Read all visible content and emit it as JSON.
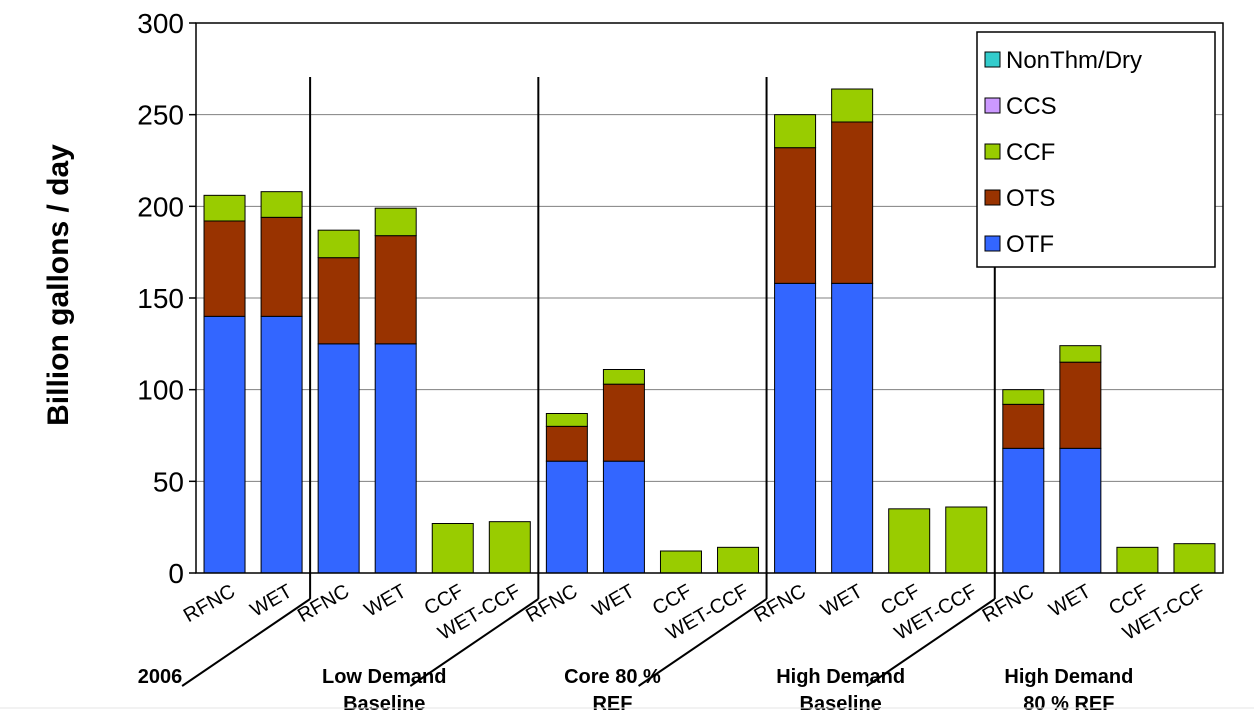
{
  "chart_data": {
    "type": "bar",
    "stacked": true,
    "ylabel": "Billion gallons / day",
    "ylim": [
      0,
      300
    ],
    "yticks": [
      "0",
      "50",
      "100",
      "150",
      "200",
      "250",
      "300"
    ],
    "grid": true,
    "legend_position": "top-right",
    "categories": [
      "RFNC",
      "WET",
      "RFNC",
      "WET",
      "CCF",
      "WET-CCF",
      "RFNC",
      "WET",
      "CCF",
      "WET-CCF",
      "RFNC",
      "WET",
      "CCF",
      "WET-CCF",
      "RFNC",
      "WET",
      "CCF",
      "WET-CCF"
    ],
    "groups": [
      {
        "label": [
          "2006"
        ],
        "start": 0,
        "count": 2
      },
      {
        "label": [
          "Low Demand",
          "Baseline"
        ],
        "start": 2,
        "count": 4
      },
      {
        "label": [
          "Core 80 %",
          "REF"
        ],
        "start": 6,
        "count": 4
      },
      {
        "label": [
          "High Demand",
          "Baseline"
        ],
        "start": 10,
        "count": 4
      },
      {
        "label": [
          "High Demand",
          "80 % REF"
        ],
        "start": 14,
        "count": 4
      }
    ],
    "series": [
      {
        "name": "OTF",
        "color": "#3366ff",
        "values": [
          140,
          140,
          125,
          125,
          0,
          0,
          61,
          61,
          0,
          0,
          158,
          158,
          0,
          0,
          68,
          68,
          0,
          0
        ]
      },
      {
        "name": "OTS",
        "color": "#993300",
        "values": [
          52,
          54,
          47,
          59,
          0,
          0,
          19,
          42,
          0,
          0,
          74,
          88,
          0,
          0,
          24,
          47,
          0,
          0
        ]
      },
      {
        "name": "CCF",
        "color": "#99cc00",
        "values": [
          14,
          14,
          15,
          15,
          27,
          28,
          7,
          8,
          12,
          14,
          18,
          18,
          35,
          36,
          8,
          9,
          14,
          16
        ]
      },
      {
        "name": "CCS",
        "color": "#cc99ff",
        "values": [
          0,
          0,
          0,
          0,
          0,
          0,
          0,
          0,
          0,
          0,
          0,
          0,
          0,
          0,
          0,
          0,
          0,
          0
        ]
      },
      {
        "name": "NonThm/Dry",
        "color": "#33cccc",
        "values": [
          0,
          0,
          0,
          0,
          0,
          0,
          0,
          0,
          0,
          0,
          0,
          0,
          0,
          0,
          0,
          0,
          0,
          0
        ]
      }
    ],
    "legend_order": [
      "NonThm/Dry",
      "CCS",
      "CCF",
      "OTS",
      "OTF"
    ]
  }
}
